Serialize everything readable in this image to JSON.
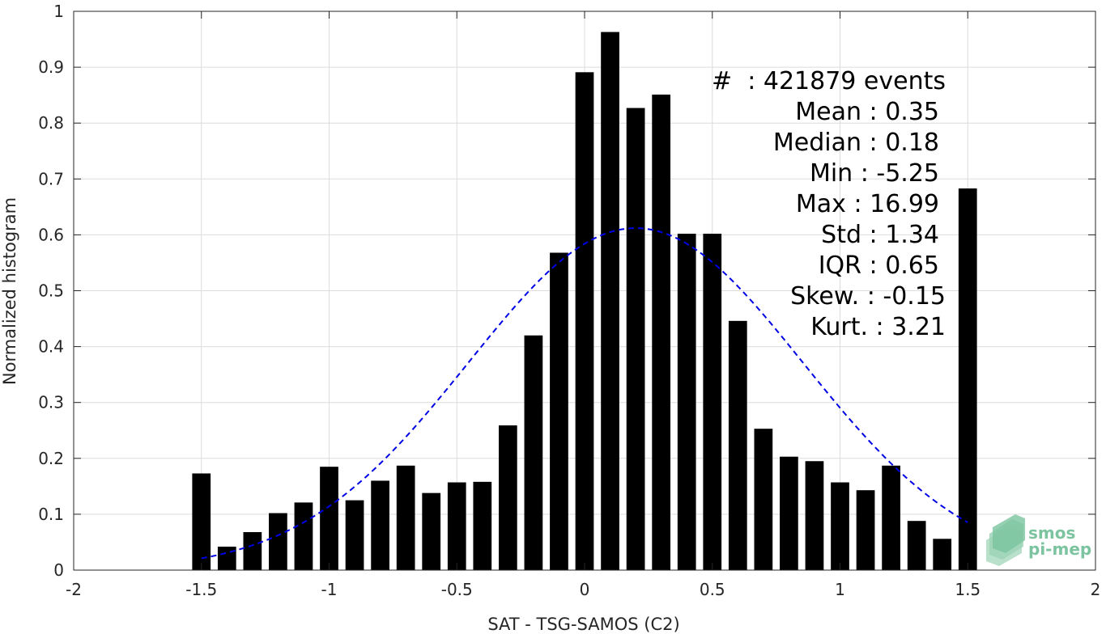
{
  "chart_data": {
    "type": "bar",
    "xlabel": "SAT - TSG-SAMOS (C2)",
    "ylabel": "Normalized histogram",
    "xlim": [
      -2,
      2
    ],
    "ylim": [
      0,
      1
    ],
    "xticks": [
      -2,
      -1.5,
      -1,
      -0.5,
      0,
      0.5,
      1,
      1.5,
      2
    ],
    "xtick_labels": [
      "-2",
      "-1.5",
      "-1",
      "-0.5",
      "0",
      "0.5",
      "1",
      "1.5",
      "2"
    ],
    "yticks": [
      0,
      0.1,
      0.2,
      0.3,
      0.4,
      0.5,
      0.6,
      0.7,
      0.8,
      0.9,
      1
    ],
    "ytick_labels": [
      "0",
      "0.1",
      "0.2",
      "0.3",
      "0.4",
      "0.5",
      "0.6",
      "0.7",
      "0.8",
      "0.9",
      "1"
    ],
    "grid": true,
    "bar_color": "#000000",
    "bins": [
      -1.5,
      -1.4,
      -1.3,
      -1.2,
      -1.1,
      -1.0,
      -0.9,
      -0.8,
      -0.7,
      -0.6,
      -0.5,
      -0.4,
      -0.3,
      -0.2,
      -0.1,
      0.0,
      0.1,
      0.2,
      0.3,
      0.4,
      0.5,
      0.6,
      0.7,
      0.8,
      0.9,
      1.0,
      1.1,
      1.2,
      1.3,
      1.4,
      1.5
    ],
    "values": [
      0.173,
      0.042,
      0.068,
      0.102,
      0.121,
      0.185,
      0.125,
      0.16,
      0.187,
      0.138,
      0.157,
      0.158,
      0.259,
      0.42,
      0.568,
      0.891,
      0.963,
      0.827,
      0.851,
      0.602,
      0.602,
      0.446,
      0.253,
      0.203,
      0.195,
      0.157,
      0.143,
      0.187,
      0.088,
      0.056,
      0.683
    ],
    "fit_curve": {
      "style": "dashed",
      "color": "#0000e6",
      "mean": 0.2,
      "std": 0.655,
      "peak": 0.612,
      "x_range": [
        -1.5,
        1.5
      ]
    },
    "stats_lines": [
      "#  : 421879 events",
      "Mean : 0.35",
      "Median : 0.18",
      "Min : -5.25",
      "Max : 16.99",
      "Std : 1.34",
      "IQR : 0.65",
      "Skew. : -0.15",
      "Kurt. : 3.21"
    ]
  },
  "logo": {
    "line1": "smos",
    "line2": "pi-mep",
    "color": "#7cc4a0"
  }
}
